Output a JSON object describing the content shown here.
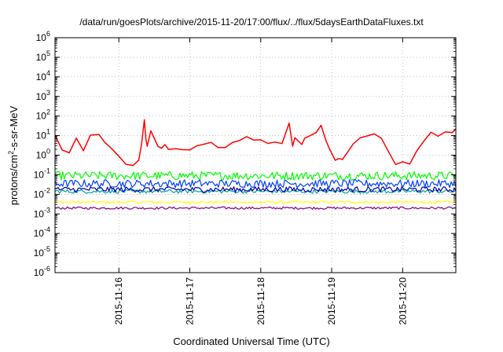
{
  "chart_data": {
    "type": "line",
    "title": "/data/run/goesPlots/archive/2015-11-20/17:00/flux/../flux/5daysEarthDataFluxes.txt",
    "xlabel": "Coordinated Universal Time (UTC)",
    "ylabel": {
      "pre": "protons/cm",
      "sup": "2",
      "post": "-s-sr-MeV"
    },
    "yscale": "log",
    "ylim_exponent": [
      -6,
      6
    ],
    "y_ticks": [
      {
        "base": "10",
        "exp": "-6",
        "value": -6
      },
      {
        "base": "10",
        "exp": "-5",
        "value": -5
      },
      {
        "base": "10",
        "exp": "-4",
        "value": -4
      },
      {
        "base": "10",
        "exp": "-3",
        "value": -3
      },
      {
        "base": "10",
        "exp": "-2",
        "value": -2
      },
      {
        "base": "10",
        "exp": "-1",
        "value": -1
      },
      {
        "base": "10",
        "exp": "0",
        "value": 0
      },
      {
        "base": "10",
        "exp": "1",
        "value": 1
      },
      {
        "base": "10",
        "exp": "2",
        "value": 2
      },
      {
        "base": "10",
        "exp": "3",
        "value": 3
      },
      {
        "base": "10",
        "exp": "4",
        "value": 4
      },
      {
        "base": "10",
        "exp": "5",
        "value": 5
      },
      {
        "base": "10",
        "exp": "6",
        "value": 6
      }
    ],
    "xlim_days": [
      15.1,
      20.75
    ],
    "x_ticks": [
      {
        "label": "2015-11-16",
        "day": 16
      },
      {
        "label": "2015-11-17",
        "day": 17
      },
      {
        "label": "2015-11-18",
        "day": 18
      },
      {
        "label": "2015-11-19",
        "day": 19
      },
      {
        "label": "2015-11-20",
        "day": 20
      }
    ],
    "grid": true,
    "legend": "none",
    "series": [
      {
        "color": "#ff0000",
        "width": 1.5,
        "x": [
          15.1,
          15.2,
          15.3,
          15.4,
          15.5,
          15.6,
          15.72,
          15.8,
          15.9,
          16.0,
          16.1,
          16.2,
          16.28,
          16.32,
          16.36,
          16.38,
          16.4,
          16.45,
          16.55,
          16.6,
          16.65,
          16.7,
          16.8,
          16.9,
          17.0,
          17.1,
          17.2,
          17.3,
          17.4,
          17.5,
          17.6,
          17.7,
          17.8,
          17.9,
          18.0,
          18.1,
          18.2,
          18.3,
          18.4,
          18.45,
          18.48,
          18.52,
          18.58,
          18.62,
          18.7,
          18.78,
          18.85,
          18.92,
          18.97,
          19.05,
          19.1,
          19.15,
          19.2,
          19.3,
          19.4,
          19.5,
          19.6,
          19.7,
          19.8,
          19.9,
          20.0,
          20.1,
          20.2,
          20.3,
          20.4,
          20.5,
          20.6,
          20.7,
          20.75
        ],
        "y": [
          1.0,
          0.3,
          0.1,
          0.8,
          0.2,
          1.0,
          1.1,
          0.6,
          0.3,
          -0.1,
          -0.5,
          -0.5,
          -0.3,
          0.6,
          1.8,
          0.9,
          0.5,
          1.2,
          0.4,
          0.3,
          0.6,
          0.3,
          0.3,
          0.3,
          0.3,
          0.5,
          0.5,
          0.6,
          0.4,
          0.4,
          0.6,
          0.8,
          1.0,
          0.8,
          0.8,
          0.6,
          0.6,
          0.6,
          1.6,
          0.5,
          0.9,
          0.7,
          0.5,
          0.9,
          1.0,
          1.1,
          1.5,
          0.8,
          0.3,
          -0.2,
          -0.2,
          -0.2,
          0.0,
          0.6,
          0.9,
          1.0,
          1.1,
          0.8,
          0.2,
          -0.4,
          -0.3,
          -0.4,
          0.2,
          0.8,
          1.2,
          1.0,
          1.2,
          1.2,
          1.3
        ]
      },
      {
        "color": "#ffff00",
        "width": 1.2,
        "level": -2.4,
        "noise": 0.06
      },
      {
        "color": "#00ff00",
        "width": 1.2,
        "level": -1.05,
        "noise": 0.22
      },
      {
        "color": "#00a0a0",
        "width": 1.2,
        "level": -1.85,
        "noise": 0.1
      },
      {
        "color": "#0040ff",
        "width": 1.2,
        "level": -1.45,
        "noise": 0.2
      },
      {
        "color": "#0000a0",
        "width": 1.2,
        "level": -1.75,
        "noise": 0.14
      },
      {
        "color": "#800080",
        "width": 1.2,
        "level": -2.7,
        "noise": 0.06
      }
    ]
  }
}
